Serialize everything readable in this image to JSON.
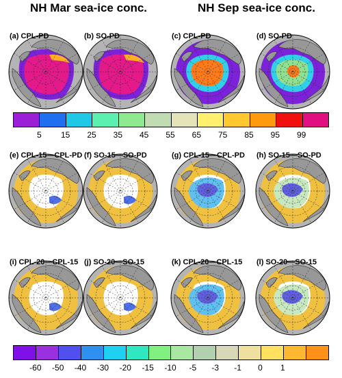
{
  "headers": {
    "left": "NH Mar sea-ice conc.",
    "right": "NH Sep sea-ice conc."
  },
  "row1": [
    {
      "label": "(a) CPL-PD",
      "field": "mar"
    },
    {
      "label": "(b) SO-PD",
      "field": "mar"
    },
    {
      "label": "(c) CPL-PD",
      "field": "sep_cpl"
    },
    {
      "label": "(d) SO-PD",
      "field": "sep_so"
    }
  ],
  "row2": [
    {
      "label": "(e) CPL-15—CPL-PD",
      "field": "diff_mar"
    },
    {
      "label": "(f) SO-15—SO-PD",
      "field": "diff_mar"
    },
    {
      "label": "(g) CPL-15—CPL-PD",
      "field": "diff_sep"
    },
    {
      "label": "(h) SO-15—SO-PD",
      "field": "diff_sep_so"
    }
  ],
  "row3": [
    {
      "label": "(i) CPL-20—CPL-15",
      "field": "diff_mar"
    },
    {
      "label": "(j) SO-20—SO-15",
      "field": "diff_mar"
    },
    {
      "label": "(k) CPL-20—CPL-15",
      "field": "diff_sep"
    },
    {
      "label": "(l) SO-20—SO-15",
      "field": "diff_sep_so"
    }
  ],
  "colorbar1": {
    "colors": [
      "#9a1fd6",
      "#1f6ff0",
      "#20c8e8",
      "#5cf0b0",
      "#90e890",
      "#c0dcb0",
      "#e4e4b8",
      "#fff070",
      "#ffc830",
      "#ff9a10",
      "#f01010",
      "#e01080"
    ],
    "labels": [
      "5",
      "15",
      "25",
      "35",
      "45",
      "55",
      "65",
      "75",
      "85",
      "95",
      "99"
    ]
  },
  "colorbar2": {
    "colors": [
      "#8010e8",
      "#9a30e0",
      "#5050f0",
      "#3090f0",
      "#20d0f0",
      "#30e8c0",
      "#80f080",
      "#a8e8a0",
      "#b0d0b0",
      "#d8d8b8",
      "#f0e0a0",
      "#ffe060",
      "#ffb830",
      "#ff9018"
    ],
    "labels": [
      "-60",
      "-50",
      "-40",
      "-30",
      "-20",
      "-15",
      "-10",
      "-5",
      "-3",
      "-1",
      "0",
      "1"
    ]
  },
  "colors": {
    "ocean": "#b4b4b4",
    "land": "#989898",
    "ice_edge": "#7c22d8",
    "ice_high": "#e41a8a",
    "ice_mid": "#ffb020",
    "sep_core": "#ff7a1a",
    "sep_edge": "#30d0e8",
    "ocean_diff": "#f0c040"
  }
}
